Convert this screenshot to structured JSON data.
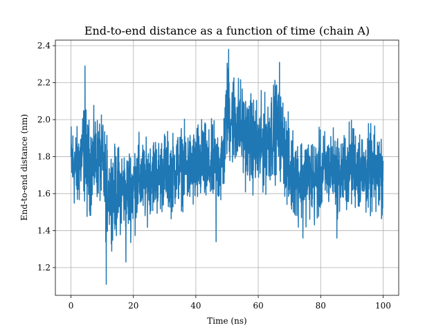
{
  "chart_data": {
    "type": "line",
    "title": "End-to-end distance as a function of time (chain A)",
    "xlabel": "Time (ns)",
    "ylabel": "End-to-end distance (nm)",
    "xlim": [
      -5,
      105
    ],
    "ylim": [
      1.05,
      2.43
    ],
    "xticks": [
      0,
      20,
      40,
      60,
      80,
      100
    ],
    "yticks": [
      1.2,
      1.4,
      1.6,
      1.8,
      2.0,
      2.2,
      2.4
    ],
    "xtick_labels": [
      "0",
      "20",
      "40",
      "60",
      "80",
      "100"
    ],
    "ytick_labels": [
      "1.2",
      "1.4",
      "1.6",
      "1.8",
      "2.0",
      "2.2",
      "2.4"
    ],
    "grid": true,
    "legend": "none",
    "series": [
      {
        "color": "#1f77b4",
        "x": [
          0,
          2,
          4,
          5,
          6,
          8,
          10,
          11,
          12,
          14,
          16,
          18,
          20,
          22,
          24,
          26,
          28,
          30,
          32,
          34,
          36,
          38,
          40,
          42,
          44,
          46,
          48,
          49,
          50,
          52,
          54,
          56,
          58,
          60,
          62,
          64,
          66,
          67,
          68,
          70,
          72,
          74,
          76,
          78,
          80,
          82,
          84,
          86,
          88,
          90,
          92,
          94,
          96,
          98,
          100
        ],
        "y": [
          1.78,
          1.72,
          1.85,
          1.75,
          1.74,
          1.8,
          1.76,
          1.66,
          1.62,
          1.6,
          1.63,
          1.61,
          1.64,
          1.68,
          1.66,
          1.72,
          1.69,
          1.73,
          1.7,
          1.74,
          1.75,
          1.73,
          1.74,
          1.77,
          1.73,
          1.76,
          1.75,
          1.82,
          2.05,
          2.0,
          1.98,
          1.9,
          1.88,
          1.84,
          1.86,
          1.92,
          1.96,
          1.91,
          1.88,
          1.72,
          1.7,
          1.68,
          1.7,
          1.66,
          1.7,
          1.73,
          1.74,
          1.7,
          1.72,
          1.76,
          1.74,
          1.71,
          1.72,
          1.7,
          1.72
        ],
        "band": [
          0.24,
          0.24,
          0.26,
          0.3,
          0.26,
          0.24,
          0.24,
          0.3,
          0.24,
          0.26,
          0.24,
          0.24,
          0.26,
          0.24,
          0.22,
          0.22,
          0.22,
          0.22,
          0.22,
          0.22,
          0.22,
          0.22,
          0.24,
          0.24,
          0.22,
          0.24,
          0.24,
          0.24,
          0.28,
          0.28,
          0.26,
          0.26,
          0.26,
          0.28,
          0.26,
          0.28,
          0.26,
          0.24,
          0.26,
          0.26,
          0.24,
          0.24,
          0.24,
          0.24,
          0.24,
          0.22,
          0.22,
          0.22,
          0.24,
          0.24,
          0.24,
          0.24,
          0.24,
          0.24,
          0.24
        ]
      }
    ],
    "extremes": [
      {
        "x": 4.5,
        "y": 2.29
      },
      {
        "x": 11.3,
        "y": 1.11
      },
      {
        "x": 17.6,
        "y": 1.23
      },
      {
        "x": 46.5,
        "y": 1.34
      },
      {
        "x": 50.5,
        "y": 2.38
      },
      {
        "x": 66.8,
        "y": 2.31
      },
      {
        "x": 74.3,
        "y": 1.36
      },
      {
        "x": 85.2,
        "y": 1.36
      }
    ]
  }
}
